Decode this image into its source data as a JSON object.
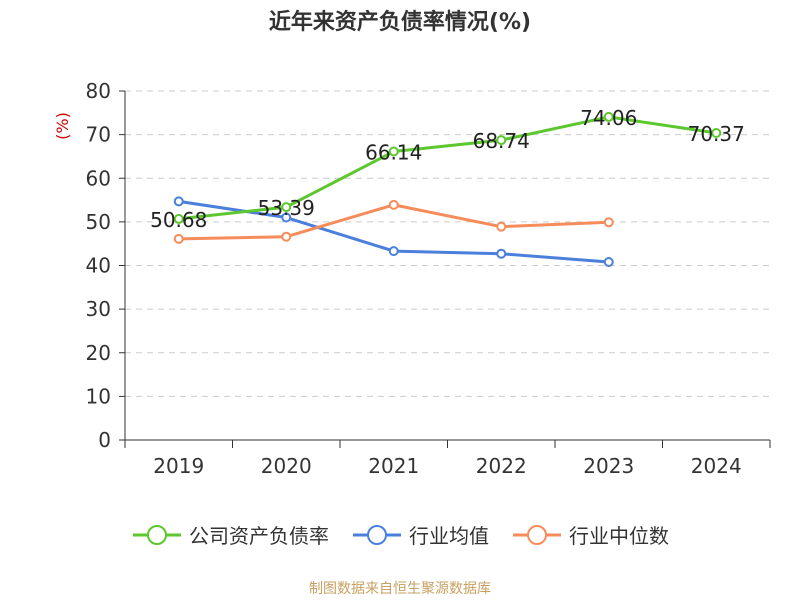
{
  "chart_data": {
    "type": "line",
    "title": "近年来资产负债率情况(%)",
    "ylabel": "(%)",
    "xlabel": "",
    "ylim": [
      0,
      80
    ],
    "yticks": [
      0,
      10,
      20,
      30,
      40,
      50,
      60,
      70,
      80
    ],
    "categories": [
      "2019",
      "2020",
      "2021",
      "2022",
      "2023",
      "2024"
    ],
    "grid": true,
    "legend_position": "bottom",
    "series": [
      {
        "name": "公司资产负债率",
        "color": "#5cc72e",
        "show_labels": true,
        "values": [
          50.68,
          53.39,
          66.14,
          68.74,
          74.06,
          70.37
        ],
        "labels": [
          "50.68",
          "53.39",
          "66.14",
          "68.74",
          "74.06",
          "70.37"
        ]
      },
      {
        "name": "行业均值",
        "color": "#4a7fdc",
        "show_labels": false,
        "values": [
          54.7,
          51.0,
          43.3,
          42.7,
          40.8,
          null
        ]
      },
      {
        "name": "行业中位数",
        "color": "#f78c5b",
        "show_labels": false,
        "values": [
          46.1,
          46.6,
          53.9,
          48.9,
          49.9,
          null
        ]
      }
    ],
    "axis_color": "#333333",
    "ylabel_color": "#cc0000",
    "grid_color": "#cccccc"
  },
  "source": "制图数据来自恒生聚源数据库"
}
